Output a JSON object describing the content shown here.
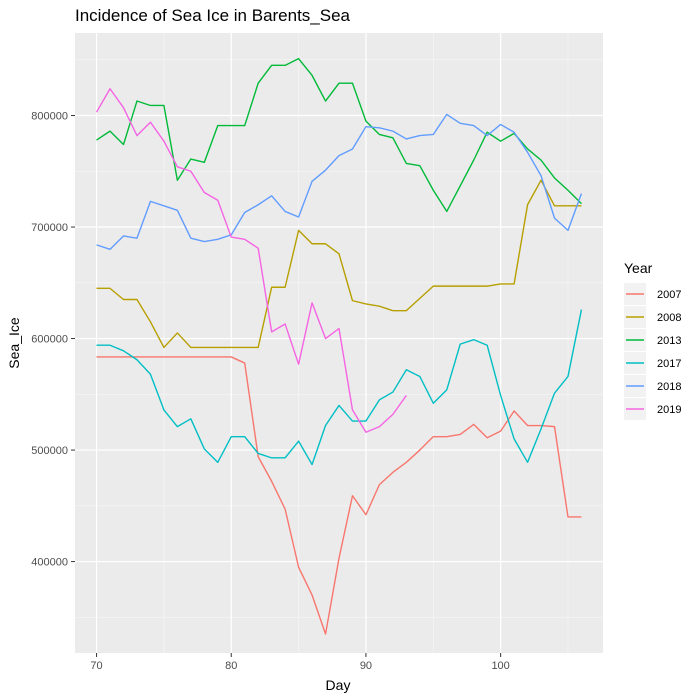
{
  "chart_data": {
    "type": "line",
    "title": "Incidence of Sea Ice in Barents_Sea",
    "xlabel": "Day",
    "ylabel": "Sea_Ice",
    "xlim": [
      68.4,
      107.6
    ],
    "ylim": [
      318000,
      874000
    ],
    "x_ticks": [
      70,
      80,
      90,
      100
    ],
    "y_ticks": [
      400000,
      500000,
      600000,
      700000,
      800000
    ],
    "y_tick_labels": [
      "400000",
      "500000",
      "600000",
      "700000",
      "800000"
    ],
    "grid": true,
    "legend": {
      "title": "Year",
      "position": "right"
    },
    "series": [
      {
        "name": "2007",
        "color": "#F8766D",
        "x": [
          70,
          71,
          72,
          73,
          74,
          75,
          76,
          77,
          78,
          79,
          80,
          81,
          82,
          83,
          84,
          85,
          86,
          87,
          88,
          89,
          90,
          91,
          92,
          93,
          94,
          95,
          96,
          97,
          98,
          99,
          100,
          101,
          102,
          103,
          104,
          105,
          106
        ],
        "y": [
          583500,
          583500,
          583500,
          583500,
          583500,
          583500,
          583500,
          583500,
          583500,
          583500,
          583500,
          578000,
          494000,
          472000,
          447000,
          395000,
          370000,
          335000,
          403000,
          459000,
          442000,
          469000,
          480000,
          489000,
          500000,
          512000,
          512000,
          514000,
          523000,
          511000,
          517000,
          535000,
          522000,
          522000,
          521000,
          440000,
          440000
        ]
      },
      {
        "name": "2008",
        "color": "#B79F00",
        "x": [
          70,
          71,
          72,
          73,
          74,
          75,
          76,
          77,
          78,
          79,
          80,
          81,
          82,
          83,
          84,
          85,
          86,
          87,
          88,
          89,
          90,
          91,
          92,
          93,
          94,
          95,
          96,
          97,
          98,
          99,
          100,
          101,
          102,
          103,
          104,
          105,
          106
        ],
        "y": [
          645000,
          645000,
          635000,
          635000,
          615000,
          592000,
          605000,
          592000,
          592000,
          592000,
          592000,
          592000,
          592000,
          646000,
          646000,
          697000,
          685000,
          685000,
          676000,
          634000,
          631000,
          629000,
          625000,
          625000,
          636000,
          647000,
          647000,
          647000,
          647000,
          647000,
          649000,
          649000,
          720000,
          742000,
          719000,
          719000,
          719000
        ]
      },
      {
        "name": "2013",
        "color": "#00BA38",
        "x": [
          70,
          71,
          72,
          73,
          74,
          75,
          76,
          77,
          78,
          79,
          80,
          81,
          82,
          83,
          84,
          85,
          86,
          87,
          88,
          89,
          90,
          91,
          92,
          93,
          94,
          95,
          96,
          97,
          98,
          99,
          100,
          101,
          102,
          103,
          104,
          105,
          106
        ],
        "y": [
          778000,
          786000,
          774000,
          813000,
          809000,
          809000,
          742000,
          761000,
          758000,
          791000,
          791000,
          791000,
          829000,
          845000,
          845000,
          851000,
          836000,
          813000,
          829000,
          829000,
          795000,
          783000,
          780000,
          757000,
          755000,
          733000,
          714000,
          737000,
          760000,
          785000,
          777000,
          784000,
          770000,
          760000,
          744000,
          733000,
          721000
        ]
      },
      {
        "name": "2017",
        "color": "#00BFC4",
        "x": [
          70,
          71,
          72,
          73,
          74,
          75,
          76,
          77,
          78,
          79,
          80,
          81,
          82,
          83,
          84,
          85,
          86,
          87,
          88,
          89,
          90,
          91,
          92,
          93,
          94,
          95,
          96,
          97,
          98,
          99,
          100,
          101,
          102,
          103,
          104,
          105,
          106
        ],
        "y": [
          594000,
          594000,
          589000,
          581000,
          568000,
          536000,
          521000,
          528000,
          501000,
          489000,
          512000,
          512000,
          497000,
          493000,
          493000,
          508000,
          487000,
          522000,
          540000,
          526000,
          526000,
          545000,
          552000,
          572000,
          566000,
          542000,
          554000,
          595000,
          599000,
          594000,
          549000,
          510000,
          489000,
          519000,
          551000,
          566000,
          626000
        ]
      },
      {
        "name": "2018",
        "color": "#619CFF",
        "x": [
          70,
          71,
          72,
          73,
          74,
          75,
          76,
          77,
          78,
          79,
          80,
          81,
          82,
          83,
          84,
          85,
          86,
          87,
          88,
          89,
          90,
          91,
          92,
          93,
          94,
          95,
          96,
          97,
          98,
          99,
          100,
          101,
          102,
          103,
          104,
          105,
          106
        ],
        "y": [
          684000,
          680000,
          692000,
          690000,
          723000,
          719000,
          715000,
          690000,
          687000,
          689000,
          693000,
          713000,
          720000,
          728000,
          714000,
          709000,
          741000,
          751000,
          764000,
          770000,
          790000,
          789000,
          786000,
          779000,
          782000,
          783000,
          801000,
          793000,
          791000,
          782000,
          792000,
          785000,
          767000,
          746000,
          708000,
          697000,
          730000
        ]
      },
      {
        "name": "2019",
        "color": "#F564E3",
        "x": [
          70,
          71,
          72,
          73,
          74,
          75,
          76,
          77,
          78,
          79,
          80,
          81,
          82,
          83,
          84,
          85,
          86,
          87,
          88,
          89,
          90,
          91,
          92,
          93
        ],
        "y": [
          803000,
          824000,
          807000,
          782000,
          794000,
          777000,
          754000,
          750000,
          731000,
          724000,
          691000,
          689000,
          681000,
          606000,
          613000,
          577000,
          632000,
          600000,
          609000,
          536000,
          516000,
          521000,
          532000,
          549000
        ]
      }
    ]
  }
}
